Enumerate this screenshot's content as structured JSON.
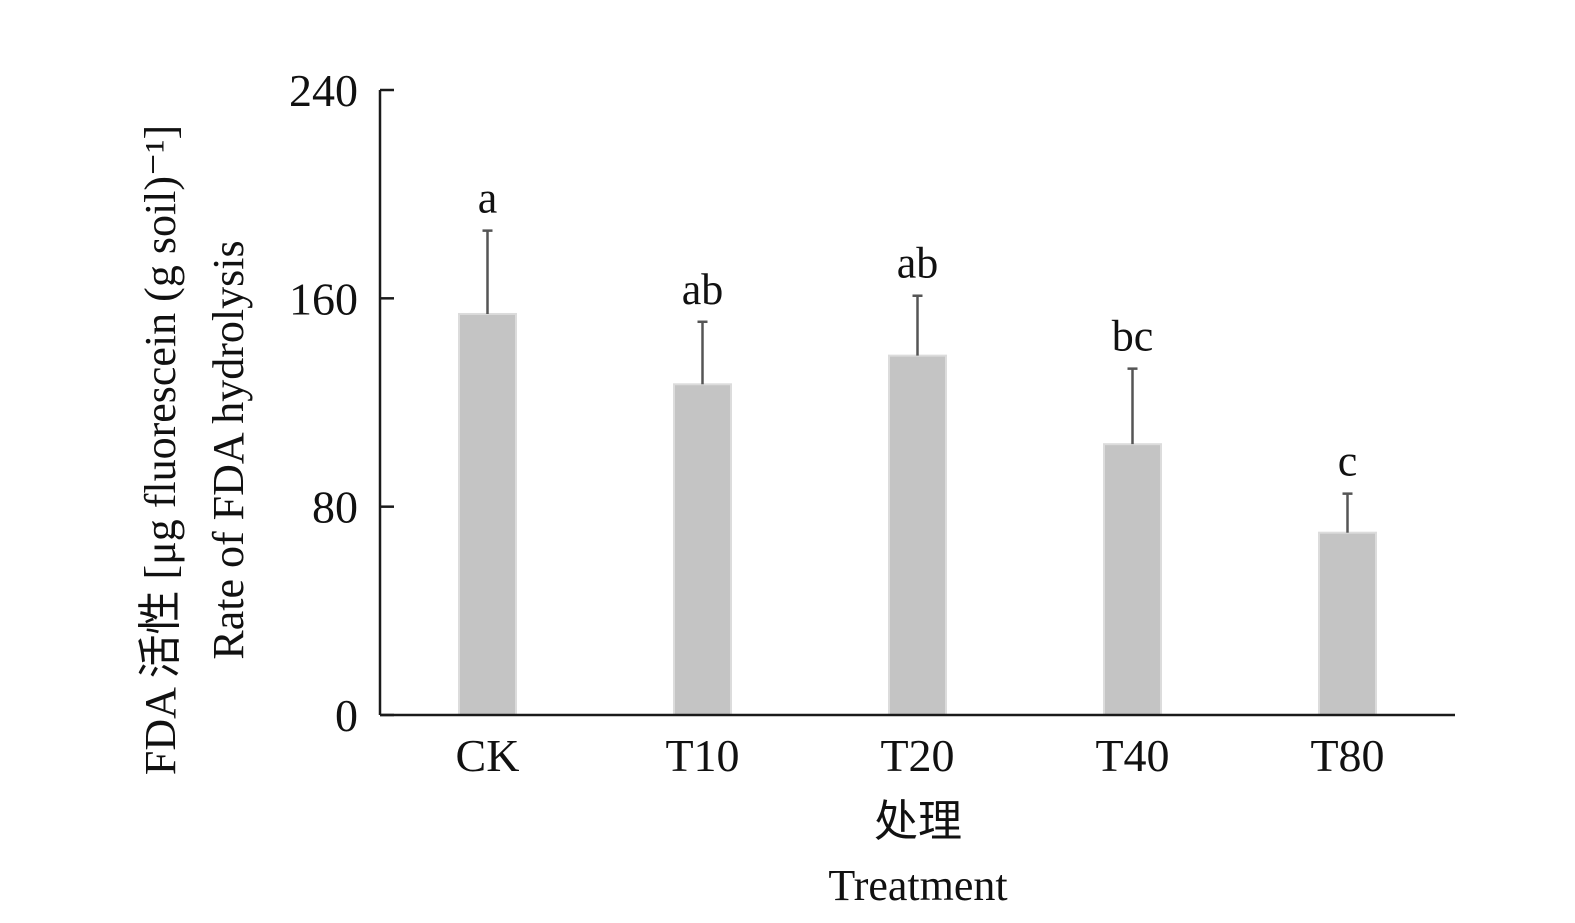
{
  "chart_data": {
    "type": "bar",
    "categories": [
      "CK",
      "T10",
      "T20",
      "T40",
      "T80"
    ],
    "values": [
      154,
      127,
      138,
      104,
      70
    ],
    "errors": [
      32,
      24,
      23,
      29,
      15
    ],
    "significance": [
      "a",
      "ab",
      "ab",
      "bc",
      "c"
    ],
    "xlabel": [
      "处理",
      "Treatment"
    ],
    "ylabel": [
      "FDA 活性 [μg fluorescein (g soil)⁻¹]",
      "Rate of FDA hydrolysis"
    ],
    "ylim": [
      0,
      240
    ],
    "yticks": [
      0,
      80,
      160,
      240
    ],
    "colors": {
      "bar": "#c4c4c4",
      "error": "#555555",
      "axis": "#1a1a1a"
    }
  }
}
